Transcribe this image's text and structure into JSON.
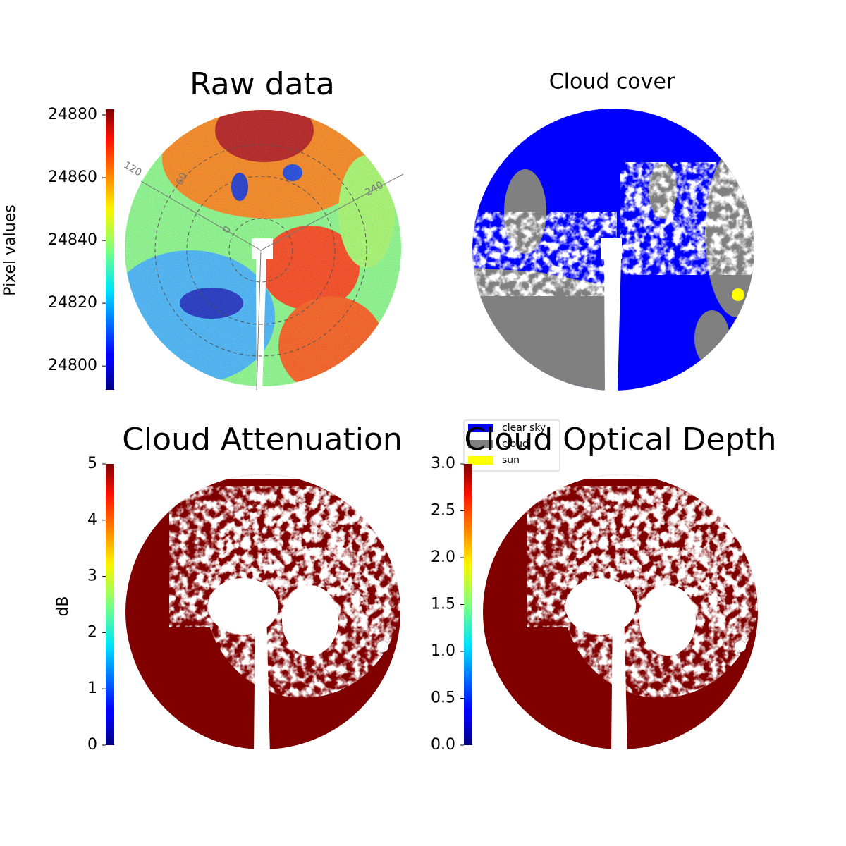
{
  "chart_data": [
    {
      "type": "image",
      "title": "Raw data",
      "colorbar": {
        "label": "Pixel values",
        "colormap": "jet",
        "ylim": [
          24792.4,
          24881.8
        ],
        "yticks": [
          24800,
          24820,
          24840,
          24860,
          24880
        ]
      },
      "annotations": [
        "120",
        "60",
        "0",
        "240"
      ]
    },
    {
      "type": "image",
      "title": "Cloud cover",
      "series": [
        {
          "name": "clear sky",
          "color": "#0000ff"
        },
        {
          "name": "cloud",
          "color": "#808080"
        },
        {
          "name": "sun",
          "color": "#ffff00"
        }
      ]
    },
    {
      "type": "image",
      "title": "Cloud Attenuation",
      "colorbar": {
        "label": "dB",
        "colormap": "jet",
        "ylim": [
          0,
          5
        ],
        "yticks": [
          0,
          1,
          2,
          3,
          4,
          5
        ]
      }
    },
    {
      "type": "image",
      "title": "Cloud Optical Depth",
      "colorbar": {
        "colormap": "jet",
        "ylim": [
          0,
          3
        ],
        "yticks": [
          {
            "value": 0,
            "label": "0.0"
          },
          0.5,
          {
            "value": 1,
            "label": "1.0"
          },
          1.5,
          {
            "value": 2,
            "label": "2.0"
          },
          2.5,
          {
            "value": 3,
            "label": "3.0"
          }
        ]
      }
    }
  ]
}
